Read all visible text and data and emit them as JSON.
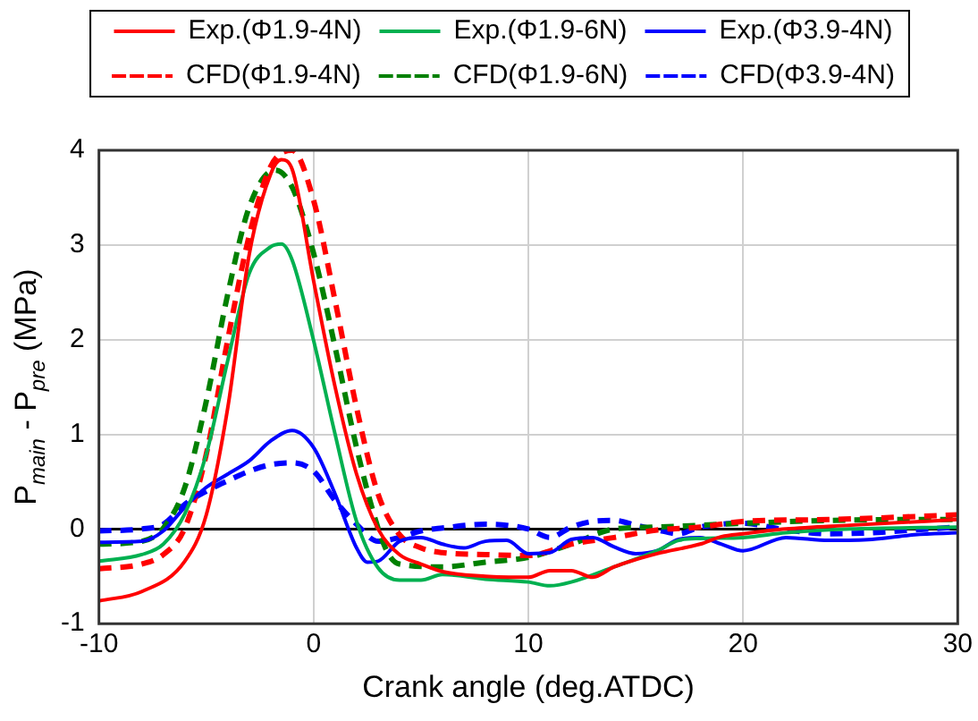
{
  "chart_data": {
    "type": "line",
    "xlabel": "Crank angle (deg.ATDC)",
    "ylabel": "P$_{main}$ - P$_{pre}$ (MPa)",
    "xlim": [
      -10,
      30
    ],
    "xticks": [
      -10,
      0,
      10,
      20,
      30
    ],
    "ylim": [
      -1,
      4
    ],
    "yticks": [
      -1,
      0,
      1,
      2,
      3,
      4
    ],
    "grid": true,
    "legend": "top",
    "marker": "none",
    "series": [
      {
        "name": "Exp.(Φ1.9-4N)",
        "color": "#ff0000",
        "line_style": "solid",
        "x": [
          -10,
          -8,
          -6,
          -5,
          -4,
          -3,
          -2,
          -1.5,
          -1,
          0,
          1,
          2,
          3,
          4,
          5,
          6,
          8,
          10,
          11,
          12,
          13,
          14,
          16,
          18,
          19,
          20,
          22,
          25,
          30
        ],
        "values": [
          -0.76,
          -0.66,
          -0.34,
          0.15,
          1.28,
          2.9,
          3.75,
          3.9,
          3.8,
          2.62,
          1.5,
          0.58,
          0,
          -0.27,
          -0.37,
          -0.45,
          -0.5,
          -0.51,
          -0.44,
          -0.44,
          -0.51,
          -0.4,
          -0.26,
          -0.16,
          -0.08,
          -0.05,
          0,
          0.04,
          0.1
        ]
      },
      {
        "name": "Exp.(Φ1.9-6N)",
        "color": "#00b050",
        "line_style": "solid",
        "x": [
          -10,
          -8,
          -7,
          -6,
          -5,
          -4,
          -3,
          -2,
          -1.5,
          -1,
          0,
          1,
          2,
          3,
          4,
          5,
          6,
          8,
          10,
          11,
          12,
          14,
          16,
          17,
          18,
          20,
          22,
          25,
          30
        ],
        "values": [
          -0.34,
          -0.27,
          -0.16,
          0.16,
          0.79,
          1.78,
          2.7,
          2.98,
          3.01,
          2.84,
          1.99,
          1,
          0.08,
          -0.41,
          -0.54,
          -0.54,
          -0.48,
          -0.53,
          -0.56,
          -0.6,
          -0.56,
          -0.4,
          -0.23,
          -0.12,
          -0.1,
          -0.09,
          -0.04,
          0,
          0.02
        ]
      },
      {
        "name": "Exp.(Φ3.9-4N)",
        "color": "#0000ff",
        "line_style": "solid",
        "x": [
          -10,
          -8,
          -7,
          -6,
          -5,
          -4,
          -3,
          -2,
          -1,
          0,
          1,
          2,
          2.5,
          3,
          4,
          5,
          6,
          7,
          8,
          9,
          10,
          11,
          12,
          13,
          14,
          15,
          16,
          17,
          18,
          19,
          20,
          22,
          24,
          26,
          28,
          30
        ],
        "values": [
          -0.14,
          -0.13,
          -0.02,
          0.23,
          0.44,
          0.58,
          0.72,
          0.93,
          1.04,
          0.86,
          0.37,
          -0.2,
          -0.35,
          -0.34,
          -0.13,
          -0.09,
          -0.16,
          -0.2,
          -0.13,
          -0.12,
          -0.26,
          -0.25,
          -0.11,
          -0.09,
          -0.19,
          -0.26,
          -0.23,
          -0.11,
          -0.09,
          -0.16,
          -0.23,
          -0.09,
          -0.12,
          -0.11,
          -0.06,
          -0.04
        ]
      },
      {
        "name": "CFD(Φ1.9-4N)",
        "color": "#ff0000",
        "line_style": "dashed",
        "x": [
          -10,
          -8,
          -7,
          -6,
          -5,
          -4,
          -3,
          -2,
          -1,
          0,
          1,
          2,
          3,
          4,
          5,
          6,
          8,
          10,
          12,
          14,
          16,
          18,
          20,
          24,
          30
        ],
        "values": [
          -0.42,
          -0.37,
          -0.27,
          0.01,
          0.79,
          2,
          3.1,
          3.83,
          4,
          3.47,
          2.41,
          1.28,
          0.37,
          -0.06,
          -0.2,
          -0.25,
          -0.27,
          -0.28,
          -0.16,
          -0.09,
          -0.01,
          0.02,
          0.08,
          0.1,
          0.15
        ]
      },
      {
        "name": "CFD(Φ1.9-6N)",
        "color": "#008000",
        "line_style": "dashed",
        "x": [
          -10,
          -8,
          -7,
          -6,
          -5,
          -4,
          -3,
          -1.8,
          -1,
          0,
          1,
          2,
          3,
          3.5,
          4,
          6,
          8,
          10,
          12,
          14,
          16,
          18,
          20,
          24,
          28,
          30
        ],
        "values": [
          -0.16,
          -0.13,
          0.01,
          0.44,
          1.35,
          2.48,
          3.4,
          3.79,
          3.61,
          2.91,
          1.92,
          0.86,
          0.01,
          -0.27,
          -0.37,
          -0.4,
          -0.35,
          -0.3,
          -0.16,
          0,
          0.02,
          0.04,
          0.06,
          0.09,
          0.1,
          0.1
        ]
      },
      {
        "name": "CFD(Φ3.9-4N)",
        "color": "#0000ff",
        "line_style": "dashed",
        "x": [
          -10,
          -8,
          -7,
          -6,
          -5,
          -4,
          -3,
          -2,
          -1,
          0,
          1,
          2,
          3,
          4,
          5,
          6,
          8,
          10,
          11,
          12,
          13,
          14,
          15,
          16,
          17,
          18,
          20,
          22,
          24,
          26,
          28,
          30
        ],
        "values": [
          -0.02,
          0,
          0.05,
          0.26,
          0.4,
          0.51,
          0.61,
          0.68,
          0.7,
          0.61,
          0.3,
          0.05,
          -0.13,
          -0.09,
          -0.02,
          0.01,
          0.05,
          0,
          -0.09,
          0.02,
          0.08,
          0.09,
          0.04,
          -0.01,
          -0.05,
          0.02,
          0.06,
          -0.01,
          -0.05,
          -0.04,
          -0.01,
          0.02
        ]
      }
    ]
  }
}
